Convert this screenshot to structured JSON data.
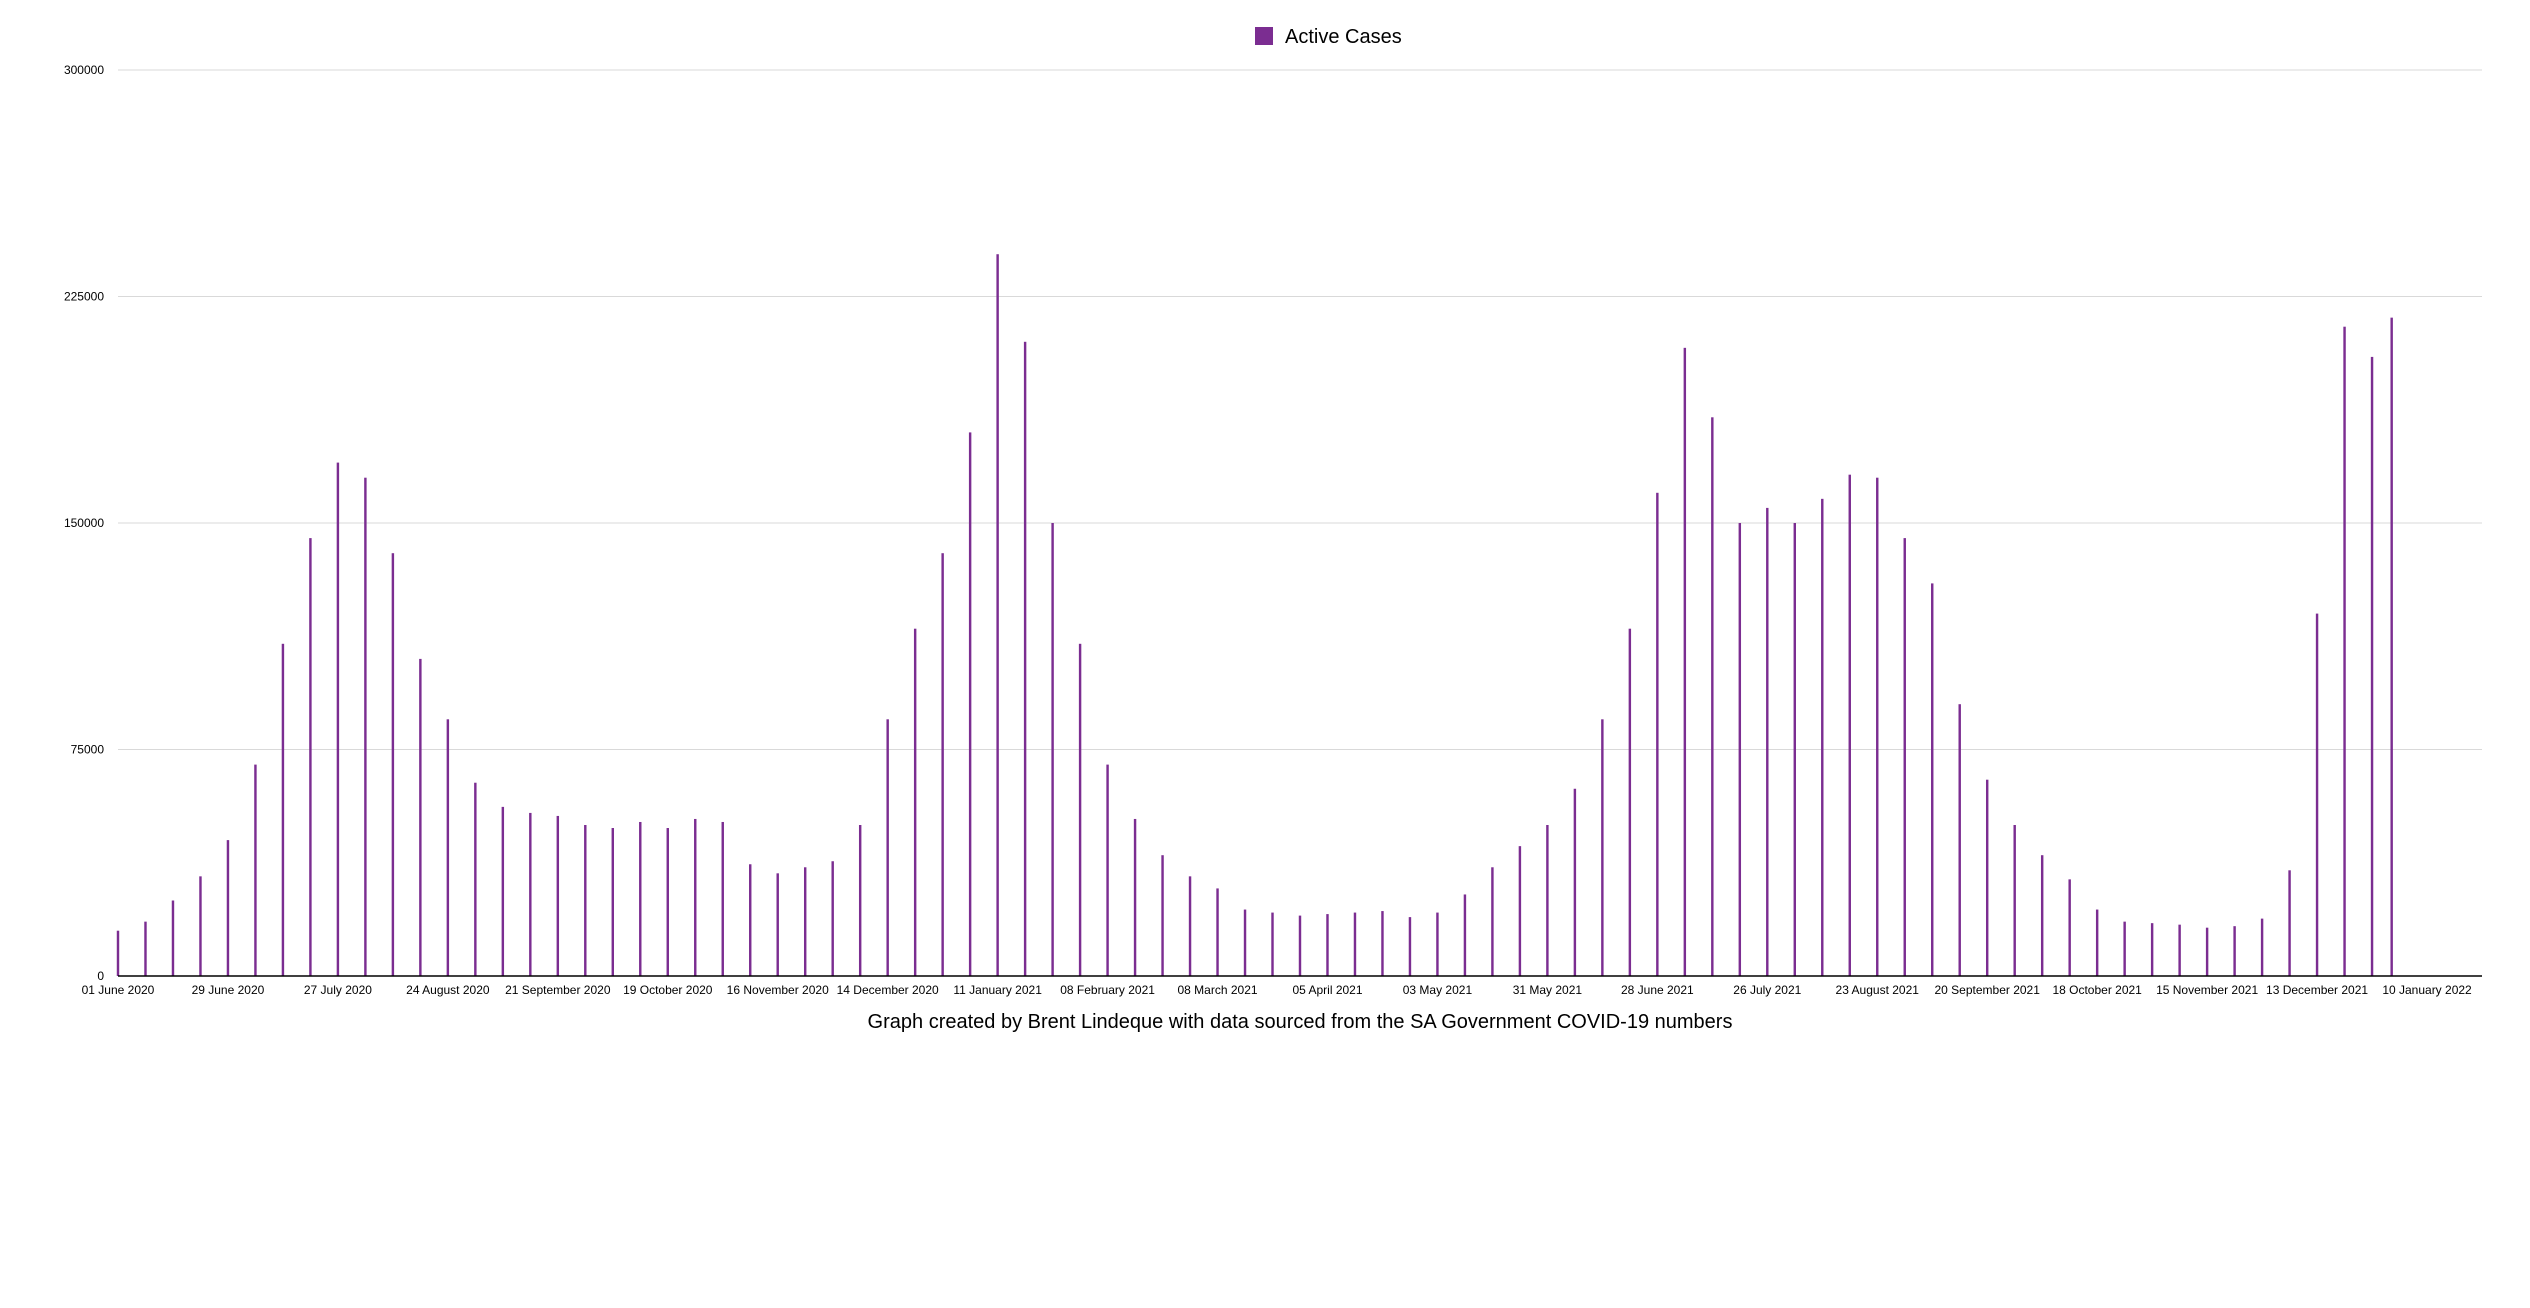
{
  "legend": {
    "label": "Active Cases",
    "color": "#7b2d91"
  },
  "caption": "Graph created by Brent Lindeque with data sourced from the SA Government COVID-19 numbers",
  "chart_data": {
    "type": "bar",
    "title": "",
    "xlabel": "",
    "ylabel": "",
    "ylim": [
      0,
      300000
    ],
    "yticks": [
      "0",
      "75000",
      "150000",
      "225000",
      "300000"
    ],
    "grid": true,
    "legend_position": "top-center",
    "x_start": "2020-06-01",
    "x_end": "2022-01-24",
    "x_tick_labels": [
      "01 June 2020",
      "29 June 2020",
      "27 July 2020",
      "24 August 2020",
      "21 September 2020",
      "19 October 2020",
      "16 November 2020",
      "14 December 2020",
      "11 January 2021",
      "08 February 2021",
      "08 March 2021",
      "05 April 2021",
      "03 May 2021",
      "31 May 2021",
      "28 June 2021",
      "26 July 2021",
      "23 August 2021",
      "20 September 2021",
      "18 October 2021",
      "15 November 2021",
      "13 December 2021",
      "10 January 2022"
    ],
    "series": [
      {
        "name": "Active Cases",
        "color": "#7b2d91",
        "points": [
          [
            "2020-06-01",
            15000
          ],
          [
            "2020-06-08",
            18000
          ],
          [
            "2020-06-15",
            25000
          ],
          [
            "2020-06-22",
            33000
          ],
          [
            "2020-06-29",
            45000
          ],
          [
            "2020-07-06",
            70000
          ],
          [
            "2020-07-13",
            110000
          ],
          [
            "2020-07-20",
            145000
          ],
          [
            "2020-07-27",
            170000
          ],
          [
            "2020-08-03",
            165000
          ],
          [
            "2020-08-10",
            140000
          ],
          [
            "2020-08-17",
            105000
          ],
          [
            "2020-08-24",
            85000
          ],
          [
            "2020-08-31",
            64000
          ],
          [
            "2020-09-07",
            56000
          ],
          [
            "2020-09-14",
            54000
          ],
          [
            "2020-09-21",
            53000
          ],
          [
            "2020-09-28",
            50000
          ],
          [
            "2020-10-05",
            49000
          ],
          [
            "2020-10-12",
            51000
          ],
          [
            "2020-10-19",
            49000
          ],
          [
            "2020-10-26",
            52000
          ],
          [
            "2020-11-02",
            51000
          ],
          [
            "2020-11-09",
            37000
          ],
          [
            "2020-11-16",
            34000
          ],
          [
            "2020-11-23",
            36000
          ],
          [
            "2020-11-30",
            38000
          ],
          [
            "2020-12-07",
            50000
          ],
          [
            "2020-12-14",
            85000
          ],
          [
            "2020-12-21",
            115000
          ],
          [
            "2020-12-28",
            140000
          ],
          [
            "2021-01-04",
            180000
          ],
          [
            "2021-01-11",
            239000
          ],
          [
            "2021-01-18",
            210000
          ],
          [
            "2021-01-25",
            150000
          ],
          [
            "2021-02-01",
            110000
          ],
          [
            "2021-02-08",
            70000
          ],
          [
            "2021-02-15",
            52000
          ],
          [
            "2021-02-22",
            40000
          ],
          [
            "2021-03-01",
            33000
          ],
          [
            "2021-03-08",
            29000
          ],
          [
            "2021-03-15",
            22000
          ],
          [
            "2021-03-22",
            21000
          ],
          [
            "2021-03-29",
            20000
          ],
          [
            "2021-04-05",
            20500
          ],
          [
            "2021-04-12",
            21000
          ],
          [
            "2021-04-19",
            21500
          ],
          [
            "2021-04-26",
            19500
          ],
          [
            "2021-05-03",
            21000
          ],
          [
            "2021-05-10",
            27000
          ],
          [
            "2021-05-17",
            36000
          ],
          [
            "2021-05-24",
            43000
          ],
          [
            "2021-05-31",
            50000
          ],
          [
            "2021-06-07",
            62000
          ],
          [
            "2021-06-14",
            85000
          ],
          [
            "2021-06-21",
            115000
          ],
          [
            "2021-06-28",
            160000
          ],
          [
            "2021-07-05",
            208000
          ],
          [
            "2021-07-12",
            185000
          ],
          [
            "2021-07-19",
            150000
          ],
          [
            "2021-07-26",
            155000
          ],
          [
            "2021-08-02",
            150000
          ],
          [
            "2021-08-09",
            158000
          ],
          [
            "2021-08-16",
            166000
          ],
          [
            "2021-08-23",
            165000
          ],
          [
            "2021-08-30",
            145000
          ],
          [
            "2021-09-06",
            130000
          ],
          [
            "2021-09-13",
            90000
          ],
          [
            "2021-09-20",
            65000
          ],
          [
            "2021-09-27",
            50000
          ],
          [
            "2021-10-04",
            40000
          ],
          [
            "2021-10-11",
            32000
          ],
          [
            "2021-10-18",
            22000
          ],
          [
            "2021-10-25",
            18000
          ],
          [
            "2021-11-01",
            17500
          ],
          [
            "2021-11-08",
            17000
          ],
          [
            "2021-11-15",
            16000
          ],
          [
            "2021-11-22",
            16500
          ],
          [
            "2021-11-29",
            19000
          ],
          [
            "2021-12-06",
            35000
          ],
          [
            "2021-12-13",
            120000
          ],
          [
            "2021-12-20",
            215000
          ],
          [
            "2021-12-27",
            205000
          ],
          [
            "2022-01-01",
            218000
          ]
        ]
      }
    ]
  }
}
